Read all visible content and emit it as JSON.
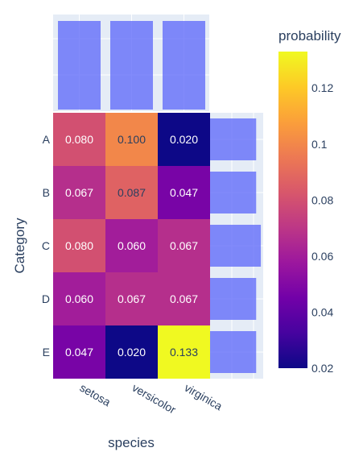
{
  "chart_data": {
    "type": "heatmap",
    "xlabel": "species",
    "ylabel": "Category",
    "x_categories": [
      "setosa",
      "versicolor",
      "virginica"
    ],
    "y_categories": [
      "A",
      "B",
      "C",
      "D",
      "E"
    ],
    "values": [
      [
        0.08,
        0.1,
        0.02
      ],
      [
        0.067,
        0.087,
        0.047
      ],
      [
        0.08,
        0.06,
        0.067
      ],
      [
        0.06,
        0.067,
        0.067
      ],
      [
        0.047,
        0.02,
        0.133
      ]
    ],
    "cell_labels": [
      [
        "0.080",
        "0.100",
        "0.020"
      ],
      [
        "0.067",
        "0.087",
        "0.047"
      ],
      [
        "0.080",
        "0.060",
        "0.067"
      ],
      [
        "0.060",
        "0.067",
        "0.067"
      ],
      [
        "0.047",
        "0.020",
        "0.133"
      ]
    ],
    "colorbar": {
      "title": "probability",
      "range": [
        0.02,
        0.133
      ],
      "ticks": [
        "0.02",
        "0.04",
        "0.06",
        "0.08",
        "0.1",
        "0.12"
      ],
      "colorscale": [
        "#0d0887",
        "#46039f",
        "#7201a8",
        "#9c179e",
        "#bd3786",
        "#d8576b",
        "#ed7953",
        "#fb9f3a",
        "#fdca26",
        "#f0f921"
      ]
    },
    "marginal_top": {
      "type": "bar",
      "categories": [
        "setosa",
        "versicolor",
        "virginica"
      ],
      "values": [
        1,
        1,
        1
      ],
      "color": "#636efa"
    },
    "marginal_right": {
      "type": "bar",
      "orientation": "h",
      "categories": [
        "A",
        "B",
        "C",
        "D",
        "E"
      ],
      "values": [
        10,
        10,
        11,
        10,
        10
      ],
      "xlim": [
        0,
        11.5
      ],
      "color": "#636efa"
    }
  }
}
